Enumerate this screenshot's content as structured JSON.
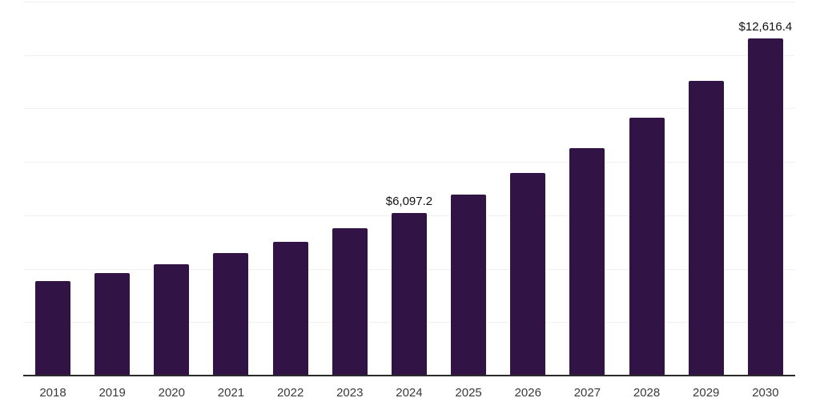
{
  "chart_data": {
    "type": "bar",
    "title": "",
    "xlabel": "",
    "ylabel": "",
    "categories": [
      "2018",
      "2019",
      "2020",
      "2021",
      "2022",
      "2023",
      "2024",
      "2025",
      "2026",
      "2027",
      "2028",
      "2029",
      "2030"
    ],
    "values": [
      3550,
      3830,
      4160,
      4590,
      5000,
      5520,
      6097.2,
      6780,
      7600,
      8520,
      9640,
      11040,
      12616.4
    ],
    "value_labels": [
      "",
      "",
      "",
      "",
      "",
      "",
      "$6,097.2",
      "",
      "",
      "",
      "",
      "",
      "$12,616.4"
    ],
    "ylim": [
      0,
      14000
    ],
    "gridline_step": 2000,
    "grid": true,
    "legend": false,
    "y_axis_tick_labels_visible": false,
    "colors": {
      "bar": "#311346",
      "gridline": "#f1f1f1",
      "axis": "#2b2b2b",
      "tick_label": "#3a3a3a",
      "value_label": "#111111",
      "background": "#ffffff"
    }
  }
}
